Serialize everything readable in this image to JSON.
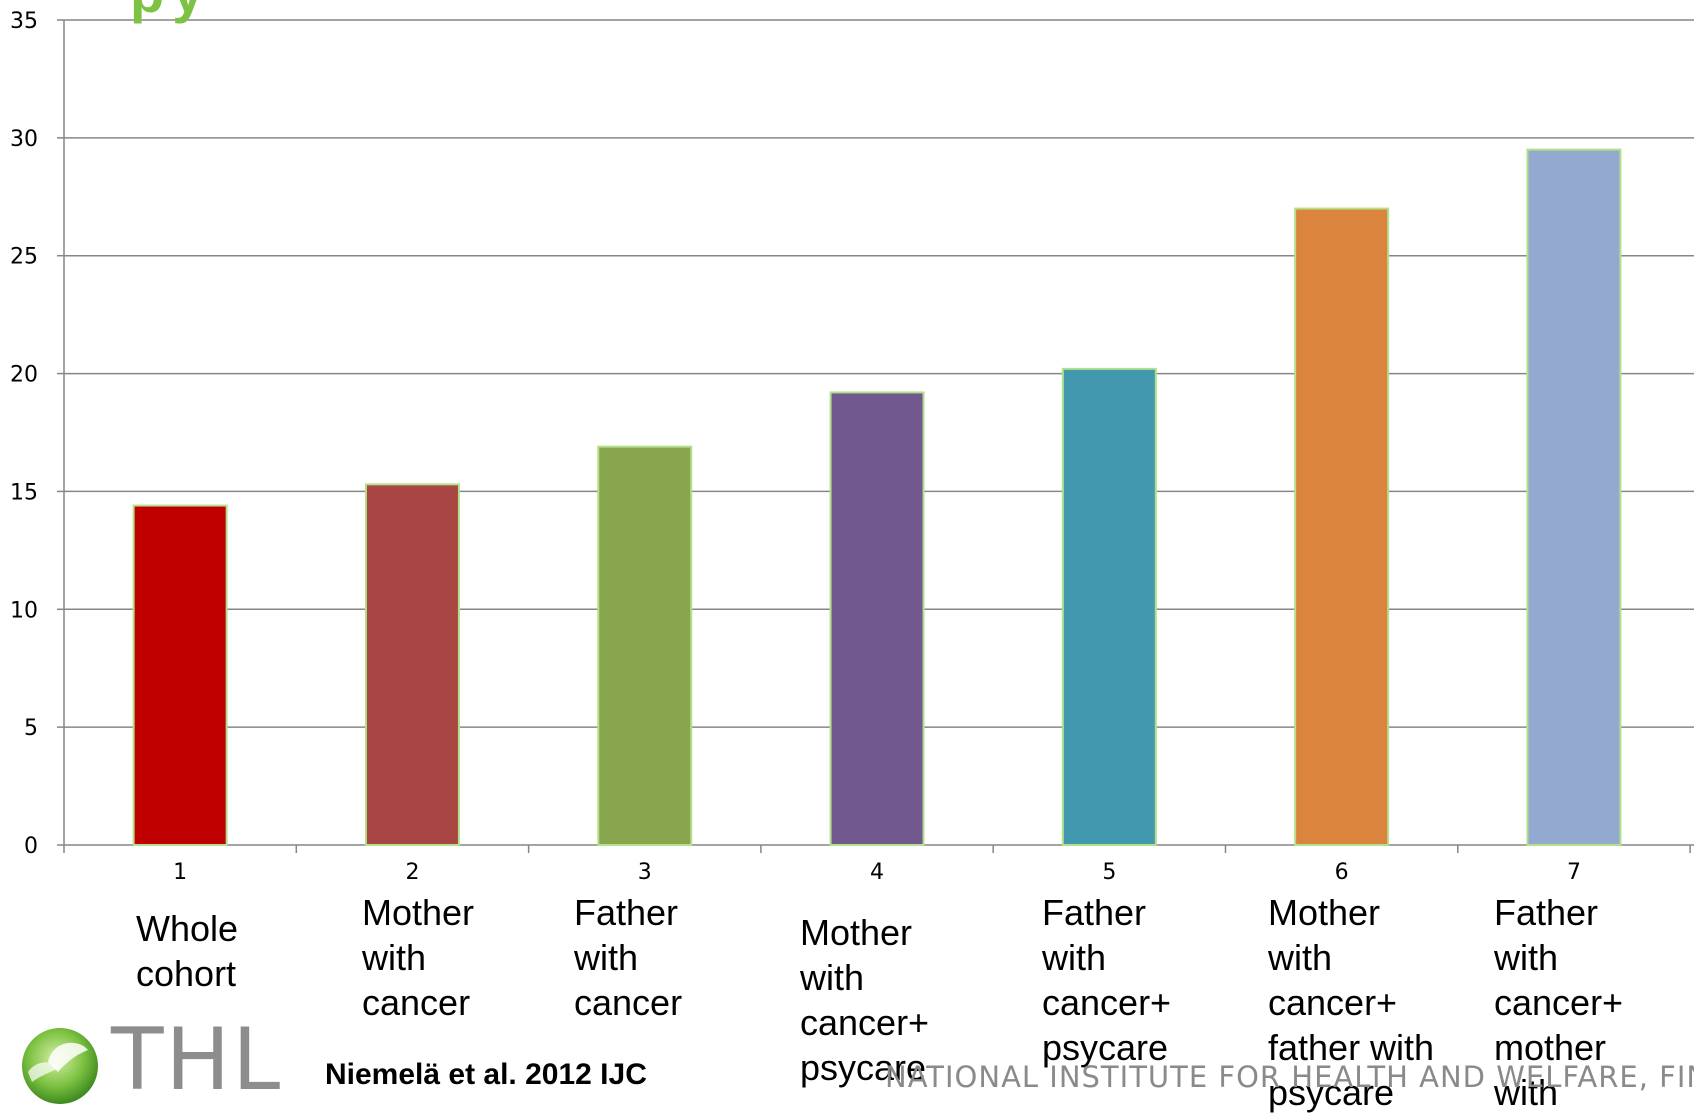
{
  "slide": {
    "title_fragment": "py",
    "citation": "Niemelä et al. 2012 IJC",
    "footer": "NATIONAL INSTITUTE FOR HEALTH AND WELFARE, FINLA",
    "logo_text": "THL",
    "logo_color": "#7dc242"
  },
  "chart_data": {
    "type": "bar",
    "categories": [
      "1",
      "2",
      "3",
      "4",
      "5",
      "6",
      "7"
    ],
    "category_descriptions": [
      [
        "Whole",
        "cohort"
      ],
      [
        "Mother",
        "with",
        "cancer"
      ],
      [
        "Father",
        "with",
        "cancer"
      ],
      [
        "Mother",
        "with",
        "cancer+",
        "psycare"
      ],
      [
        "Father",
        "with",
        "cancer+",
        "psycare"
      ],
      [
        "Mother",
        "with",
        "cancer+",
        "father with",
        "psycare"
      ],
      [
        "Father",
        "with",
        "cancer+",
        "mother",
        "with"
      ]
    ],
    "values": [
      14.4,
      15.3,
      16.9,
      19.2,
      20.2,
      27.0,
      29.5
    ],
    "colors": [
      "#c00000",
      "#a94643",
      "#89a54e",
      "#71588f",
      "#4198af",
      "#db843d",
      "#93a9cf"
    ],
    "ylim": [
      0,
      35
    ],
    "yticks": [
      "0",
      "5",
      "10",
      "15",
      "20",
      "25",
      "30",
      "35"
    ],
    "grid": true,
    "xlabel": "",
    "ylabel": ""
  }
}
